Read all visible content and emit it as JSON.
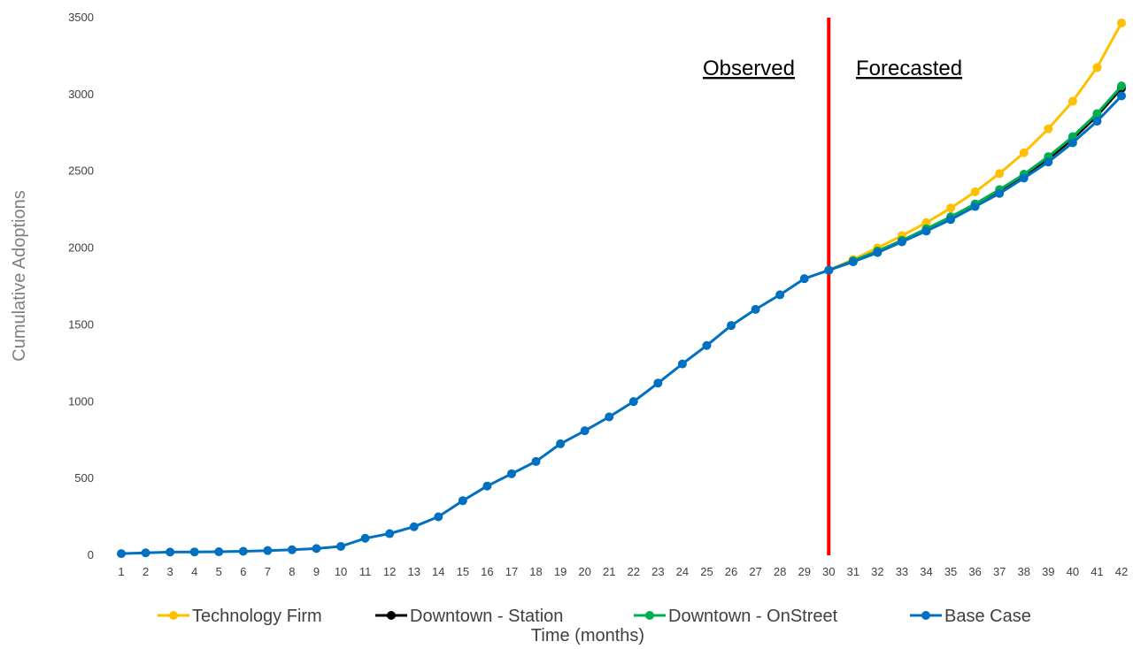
{
  "chart_data": {
    "type": "line",
    "xlabel": "Time (months)",
    "ylabel": "Cumulative Adoptions",
    "ylim": [
      0,
      3500
    ],
    "yticks": [
      0,
      500,
      1000,
      1500,
      2000,
      2500,
      3000,
      3500
    ],
    "x": [
      1,
      2,
      3,
      4,
      5,
      6,
      7,
      8,
      9,
      10,
      11,
      12,
      13,
      14,
      15,
      16,
      17,
      18,
      19,
      20,
      21,
      22,
      23,
      24,
      25,
      26,
      27,
      28,
      29,
      30,
      31,
      32,
      33,
      34,
      35,
      36,
      37,
      38,
      39,
      40,
      41,
      42
    ],
    "x_tick_labels": [
      "1",
      "2",
      "3",
      "4",
      "5",
      "6",
      "7",
      "8",
      "9",
      "10",
      "11",
      "12",
      "13",
      "14",
      "15",
      "16",
      "17",
      "18",
      "19",
      "20",
      "21",
      "22",
      "23",
      "24",
      "25",
      "26",
      "27",
      "28",
      "29",
      "30",
      "31",
      "32",
      "33",
      "34",
      "35",
      "36",
      "37",
      "38",
      "39",
      "40",
      "41",
      "42"
    ],
    "series": [
      {
        "name": "Technology Firm",
        "color": "#ffc000",
        "x": [
          30,
          31,
          32,
          33,
          34,
          35,
          36,
          37,
          38,
          39,
          40,
          41,
          42
        ],
        "values": [
          1850,
          1920,
          1995,
          2075,
          2160,
          2255,
          2360,
          2480,
          2615,
          2770,
          2950,
          3170,
          3460
        ]
      },
      {
        "name": "Downtown - Station",
        "color": "#000000",
        "x": [
          30,
          31,
          32,
          33,
          34,
          35,
          36,
          37,
          38,
          39,
          40,
          41,
          42
        ],
        "values": [
          1850,
          1910,
          1972,
          2042,
          2115,
          2190,
          2275,
          2365,
          2465,
          2575,
          2705,
          2855,
          3035
        ]
      },
      {
        "name": "Downtown - OnStreet",
        "color": "#00b050",
        "x": [
          30,
          31,
          32,
          33,
          34,
          35,
          36,
          37,
          38,
          39,
          40,
          41,
          42
        ],
        "values": [
          1850,
          1912,
          1975,
          2045,
          2120,
          2198,
          2282,
          2375,
          2475,
          2590,
          2720,
          2870,
          3050
        ]
      },
      {
        "name": "Base Case",
        "color": "#0070c0",
        "x": [
          1,
          2,
          3,
          4,
          5,
          6,
          7,
          8,
          9,
          10,
          11,
          12,
          13,
          14,
          15,
          16,
          17,
          18,
          19,
          20,
          21,
          22,
          23,
          24,
          25,
          26,
          27,
          28,
          29,
          30,
          31,
          32,
          33,
          34,
          35,
          36,
          37,
          38,
          39,
          40,
          41,
          42
        ],
        "values": [
          5,
          10,
          15,
          16,
          17,
          20,
          25,
          30,
          38,
          52,
          105,
          135,
          180,
          245,
          350,
          445,
          525,
          605,
          720,
          805,
          895,
          995,
          1115,
          1240,
          1360,
          1490,
          1595,
          1690,
          1795,
          1850,
          1905,
          1965,
          2035,
          2105,
          2180,
          2265,
          2350,
          2450,
          2555,
          2680,
          2820,
          2985
        ]
      }
    ],
    "divider_x": 30,
    "divider_color": "#ff0000",
    "annotations": [
      "Observed",
      "Forecasted"
    ],
    "legend_position": "bottom",
    "grid": false
  }
}
